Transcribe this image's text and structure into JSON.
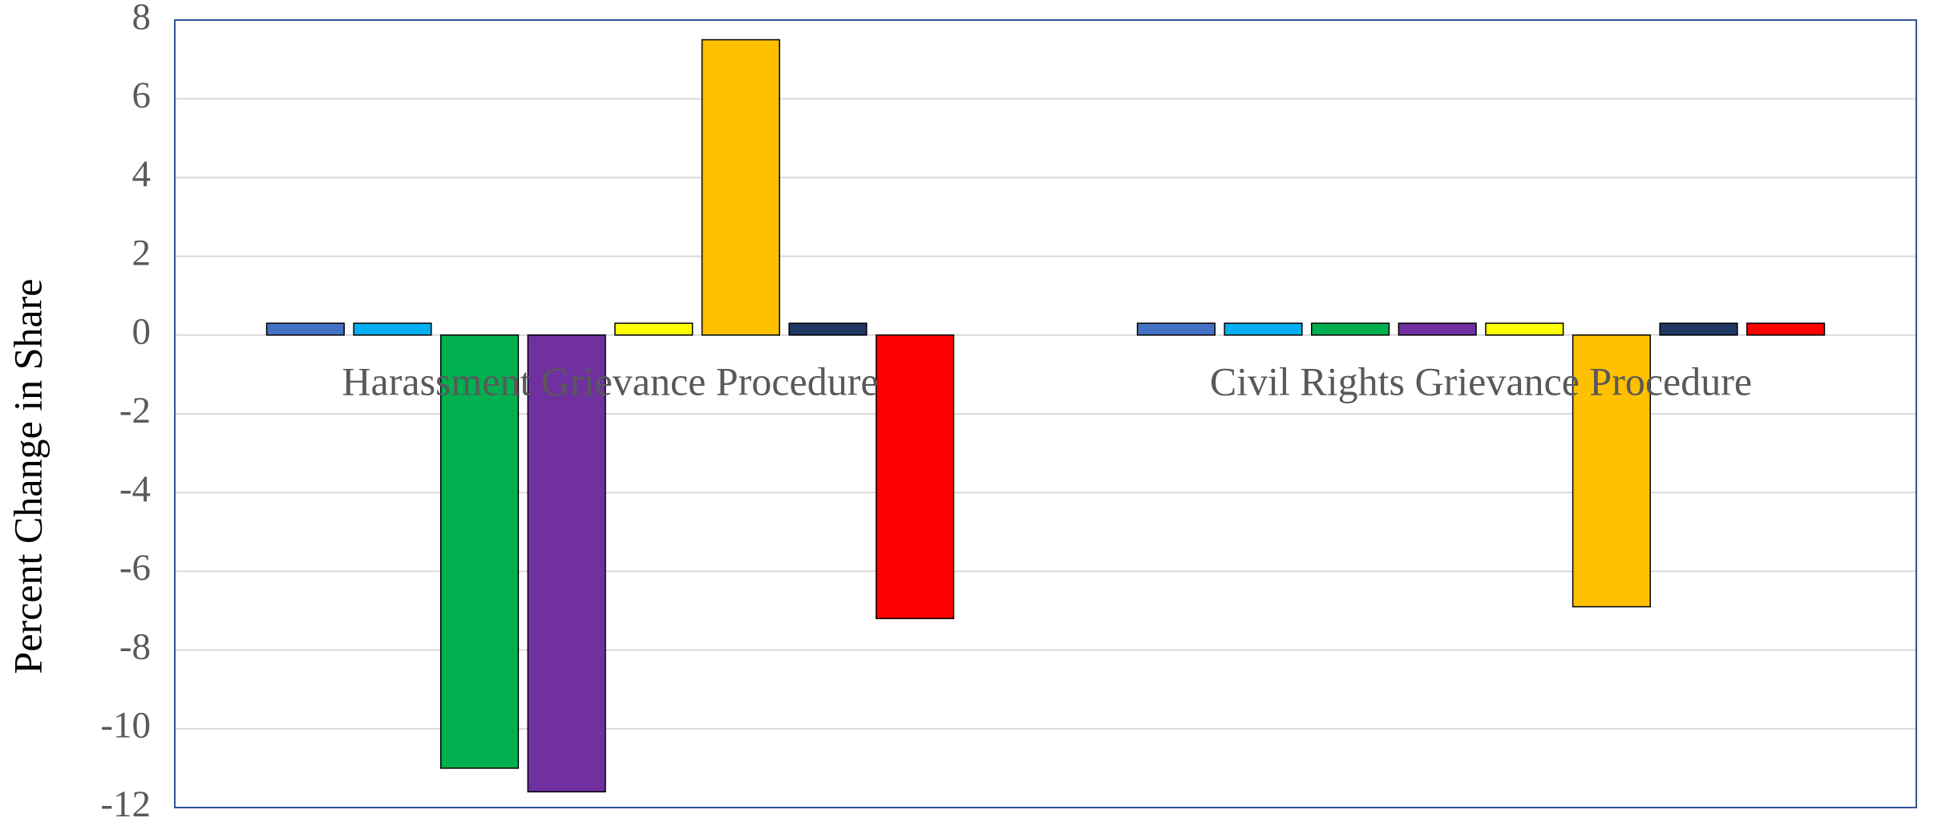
{
  "chart_data": {
    "type": "bar",
    "y_label": "Percent Change in Share",
    "categories": [
      "Harassment Grievance Procedure",
      "Civil Rights Grievance Procedure"
    ],
    "series": [
      {
        "color": "#4472c4",
        "values": [
          0.3,
          0.3
        ]
      },
      {
        "color": "#00b0f0",
        "values": [
          0.3,
          0.3
        ]
      },
      {
        "color": "#00b050",
        "values": [
          -11,
          0.3
        ]
      },
      {
        "color": "#7030a0",
        "values": [
          -11.6,
          0.3
        ]
      },
      {
        "color": "#ffff00",
        "values": [
          0.3,
          0.3
        ]
      },
      {
        "color": "#ffc000",
        "values": [
          7.5,
          -6.9
        ]
      },
      {
        "color": "#1f3864",
        "values": [
          0.3,
          0.3
        ]
      },
      {
        "color": "#ff0000",
        "values": [
          -7.2,
          0.3
        ]
      }
    ],
    "ylim": [
      -12,
      8
    ],
    "yticks": [
      -12,
      -10,
      -8,
      -6,
      -4,
      -2,
      0,
      2,
      4,
      6,
      8
    ],
    "grid": true
  }
}
